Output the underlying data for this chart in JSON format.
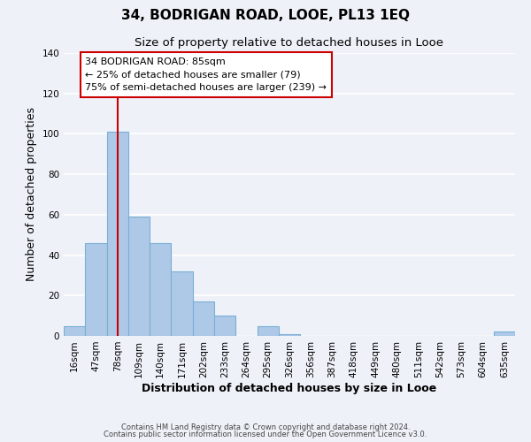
{
  "title": "34, BODRIGAN ROAD, LOOE, PL13 1EQ",
  "subtitle": "Size of property relative to detached houses in Looe",
  "xlabel": "Distribution of detached houses by size in Looe",
  "ylabel": "Number of detached properties",
  "bar_labels": [
    "16sqm",
    "47sqm",
    "78sqm",
    "109sqm",
    "140sqm",
    "171sqm",
    "202sqm",
    "233sqm",
    "264sqm",
    "295sqm",
    "326sqm",
    "356sqm",
    "387sqm",
    "418sqm",
    "449sqm",
    "480sqm",
    "511sqm",
    "542sqm",
    "573sqm",
    "604sqm",
    "635sqm"
  ],
  "bar_heights": [
    5,
    46,
    101,
    59,
    46,
    32,
    17,
    10,
    0,
    5,
    1,
    0,
    0,
    0,
    0,
    0,
    0,
    0,
    0,
    0,
    2
  ],
  "bar_color": "#aec8e8",
  "bar_edge_color": "#7aafd4",
  "vline_x": 2,
  "vline_color": "#cc0000",
  "ylim": [
    0,
    140
  ],
  "yticks": [
    0,
    20,
    40,
    60,
    80,
    100,
    120,
    140
  ],
  "annotation_title": "34 BODRIGAN ROAD: 85sqm",
  "annotation_line1": "← 25% of detached houses are smaller (79)",
  "annotation_line2": "75% of semi-detached houses are larger (239) →",
  "footer_line1": "Contains HM Land Registry data © Crown copyright and database right 2024.",
  "footer_line2": "Contains public sector information licensed under the Open Government Licence v3.0.",
  "background_color": "#eef2f8",
  "plot_background": "#eef2f8",
  "grid_color": "#ffffff",
  "title_fontsize": 11,
  "subtitle_fontsize": 9.5,
  "axis_label_fontsize": 9,
  "tick_fontsize": 7.5
}
